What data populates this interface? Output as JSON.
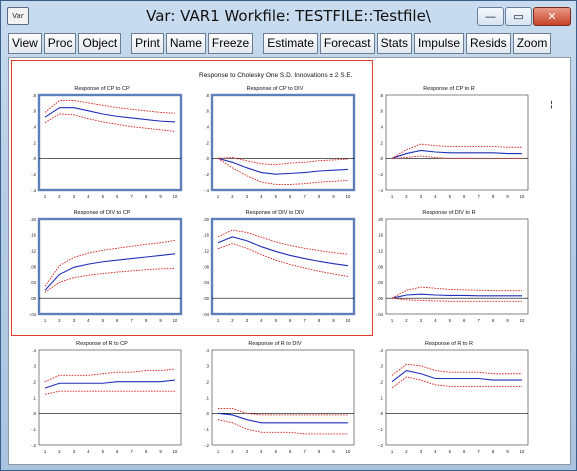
{
  "window": {
    "icon_label": "Var",
    "title": "Var: VAR1    Workfile: TESTFILE::Testfile\\",
    "minimize_label": "—",
    "maximize_label": "▭",
    "close_label": "✕"
  },
  "toolbar": {
    "groups": [
      [
        "View",
        "Proc",
        "Object"
      ],
      [
        "Print",
        "Name",
        "Freeze"
      ],
      [
        "Estimate",
        "Forecast",
        "Stats",
        "Impulse",
        "Resids",
        "Zoom"
      ]
    ]
  },
  "graph": {
    "main_title": "Response to Cholesky One S.D. Innovations ± 2 S.E.",
    "legend_mark": "¦"
  },
  "chart_data": [
    {
      "type": "line",
      "title": "Response of CP to CP",
      "x": [
        1,
        2,
        3,
        4,
        5,
        6,
        7,
        8,
        9,
        10
      ],
      "ylim": [
        -0.4,
        0.8
      ],
      "yticks": [
        "-.4",
        "-.2",
        ".0",
        ".2",
        ".4",
        ".6",
        ".8"
      ],
      "series": [
        {
          "values": [
            0.52,
            0.64,
            0.64,
            0.6,
            0.56,
            0.53,
            0.51,
            0.49,
            0.47,
            0.46
          ]
        },
        {
          "values": [
            0.45,
            0.56,
            0.55,
            0.5,
            0.46,
            0.43,
            0.4,
            0.38,
            0.36,
            0.34
          ]
        },
        {
          "values": [
            0.58,
            0.73,
            0.73,
            0.7,
            0.67,
            0.64,
            0.62,
            0.6,
            0.58,
            0.57
          ]
        }
      ]
    },
    {
      "type": "line",
      "title": "Response of CP to DIV",
      "x": [
        1,
        2,
        3,
        4,
        5,
        6,
        7,
        8,
        9,
        10
      ],
      "ylim": [
        -0.4,
        0.8
      ],
      "yticks": [
        "-.4",
        "-.2",
        ".0",
        ".2",
        ".4",
        ".6",
        ".8"
      ],
      "series": [
        {
          "values": [
            0,
            -0.05,
            -0.12,
            -0.18,
            -0.2,
            -0.19,
            -0.18,
            -0.16,
            -0.15,
            -0.14
          ]
        },
        {
          "values": [
            0,
            -0.12,
            -0.22,
            -0.3,
            -0.33,
            -0.33,
            -0.32,
            -0.3,
            -0.29,
            -0.28
          ]
        },
        {
          "values": [
            0,
            0.01,
            -0.03,
            -0.07,
            -0.08,
            -0.06,
            -0.05,
            -0.03,
            -0.02,
            -0.01
          ]
        }
      ]
    },
    {
      "type": "line",
      "title": "Response of CP to R",
      "x": [
        1,
        2,
        3,
        4,
        5,
        6,
        7,
        8,
        9,
        10
      ],
      "ylim": [
        -0.4,
        0.8
      ],
      "yticks": [
        "-.4",
        "-.2",
        ".0",
        ".2",
        ".4",
        ".6",
        ".8"
      ],
      "series": [
        {
          "values": [
            0,
            0.06,
            0.1,
            0.08,
            0.07,
            0.07,
            0.07,
            0.07,
            0.06,
            0.06
          ]
        },
        {
          "values": [
            0,
            0.01,
            0.03,
            0.01,
            0.0,
            0.0,
            0.0,
            0.0,
            0.0,
            0.0
          ]
        },
        {
          "values": [
            0,
            0.11,
            0.18,
            0.16,
            0.15,
            0.15,
            0.15,
            0.15,
            0.14,
            0.14
          ]
        }
      ]
    },
    {
      "type": "line",
      "title": "Response of DIV to CP",
      "x": [
        1,
        2,
        3,
        4,
        5,
        6,
        7,
        8,
        9,
        10
      ],
      "ylim": [
        -0.04,
        0.2
      ],
      "yticks": [
        "-.04",
        ".00",
        ".04",
        ".08",
        ".12",
        ".16",
        ".20"
      ],
      "series": [
        {
          "values": [
            0.02,
            0.06,
            0.078,
            0.086,
            0.092,
            0.096,
            0.1,
            0.104,
            0.108,
            0.112
          ]
        },
        {
          "values": [
            0.015,
            0.04,
            0.052,
            0.058,
            0.062,
            0.066,
            0.069,
            0.072,
            0.074,
            0.075
          ]
        },
        {
          "values": [
            0.03,
            0.082,
            0.103,
            0.114,
            0.121,
            0.126,
            0.131,
            0.136,
            0.14,
            0.146
          ]
        }
      ]
    },
    {
      "type": "line",
      "title": "Response of DIV to DIV",
      "x": [
        1,
        2,
        3,
        4,
        5,
        6,
        7,
        8,
        9,
        10
      ],
      "ylim": [
        -0.04,
        0.2
      ],
      "yticks": [
        "-.04",
        ".00",
        ".04",
        ".08",
        ".12",
        ".16",
        ".20"
      ],
      "series": [
        {
          "values": [
            0.14,
            0.155,
            0.145,
            0.13,
            0.118,
            0.108,
            0.1,
            0.093,
            0.087,
            0.082
          ]
        },
        {
          "values": [
            0.125,
            0.138,
            0.126,
            0.11,
            0.096,
            0.085,
            0.076,
            0.068,
            0.061,
            0.055
          ]
        },
        {
          "values": [
            0.155,
            0.172,
            0.166,
            0.154,
            0.142,
            0.133,
            0.126,
            0.12,
            0.115,
            0.111
          ]
        }
      ]
    },
    {
      "type": "line",
      "title": "Response of DIV to R",
      "x": [
        1,
        2,
        3,
        4,
        5,
        6,
        7,
        8,
        9,
        10
      ],
      "ylim": [
        -0.04,
        0.2
      ],
      "yticks": [
        "-.04",
        ".00",
        ".04",
        ".08",
        ".12",
        ".16",
        ".20"
      ],
      "series": [
        {
          "values": [
            0,
            0.008,
            0.01,
            0.008,
            0.007,
            0.007,
            0.006,
            0.006,
            0.006,
            0.006
          ]
        },
        {
          "values": [
            0,
            -0.004,
            -0.006,
            -0.007,
            -0.008,
            -0.008,
            -0.008,
            -0.008,
            -0.008,
            -0.008
          ]
        },
        {
          "values": [
            0,
            0.02,
            0.028,
            0.025,
            0.022,
            0.021,
            0.02,
            0.019,
            0.019,
            0.019
          ]
        }
      ]
    },
    {
      "type": "line",
      "title": "Response of R to CP",
      "x": [
        1,
        2,
        3,
        4,
        5,
        6,
        7,
        8,
        9,
        10
      ],
      "ylim": [
        -0.2,
        0.4
      ],
      "yticks": [
        "-.2",
        "-.1",
        ".0",
        ".1",
        ".2",
        ".3",
        ".4"
      ],
      "series": [
        {
          "values": [
            0.16,
            0.19,
            0.19,
            0.19,
            0.19,
            0.2,
            0.2,
            0.2,
            0.2,
            0.21
          ]
        },
        {
          "values": [
            0.12,
            0.14,
            0.14,
            0.14,
            0.14,
            0.14,
            0.14,
            0.14,
            0.14,
            0.14
          ]
        },
        {
          "values": [
            0.2,
            0.24,
            0.24,
            0.24,
            0.25,
            0.26,
            0.26,
            0.27,
            0.27,
            0.28
          ]
        }
      ]
    },
    {
      "type": "line",
      "title": "Response of R to DIV",
      "x": [
        1,
        2,
        3,
        4,
        5,
        6,
        7,
        8,
        9,
        10
      ],
      "ylim": [
        -0.2,
        0.4
      ],
      "yticks": [
        "-.2",
        "-.1",
        ".0",
        ".1",
        ".2",
        ".3",
        ".4"
      ],
      "series": [
        {
          "values": [
            0.0,
            -0.01,
            -0.04,
            -0.06,
            -0.06,
            -0.06,
            -0.06,
            -0.06,
            -0.06,
            -0.06
          ]
        },
        {
          "values": [
            -0.04,
            -0.06,
            -0.1,
            -0.12,
            -0.12,
            -0.12,
            -0.13,
            -0.13,
            -0.13,
            -0.13
          ]
        },
        {
          "values": [
            0.03,
            0.03,
            0.0,
            -0.01,
            -0.01,
            -0.01,
            -0.01,
            -0.01,
            -0.01,
            -0.01
          ]
        }
      ]
    },
    {
      "type": "line",
      "title": "Response of R to R",
      "x": [
        1,
        2,
        3,
        4,
        5,
        6,
        7,
        8,
        9,
        10
      ],
      "ylim": [
        -0.2,
        0.4
      ],
      "yticks": [
        "-.2",
        "-.1",
        ".0",
        ".1",
        ".2",
        ".3",
        ".4"
      ],
      "series": [
        {
          "values": [
            0.2,
            0.27,
            0.25,
            0.22,
            0.22,
            0.22,
            0.22,
            0.21,
            0.21,
            0.21
          ]
        },
        {
          "values": [
            0.16,
            0.23,
            0.21,
            0.18,
            0.17,
            0.17,
            0.17,
            0.17,
            0.17,
            0.17
          ]
        },
        {
          "values": [
            0.24,
            0.31,
            0.3,
            0.27,
            0.26,
            0.26,
            0.26,
            0.25,
            0.25,
            0.25
          ]
        }
      ]
    }
  ]
}
